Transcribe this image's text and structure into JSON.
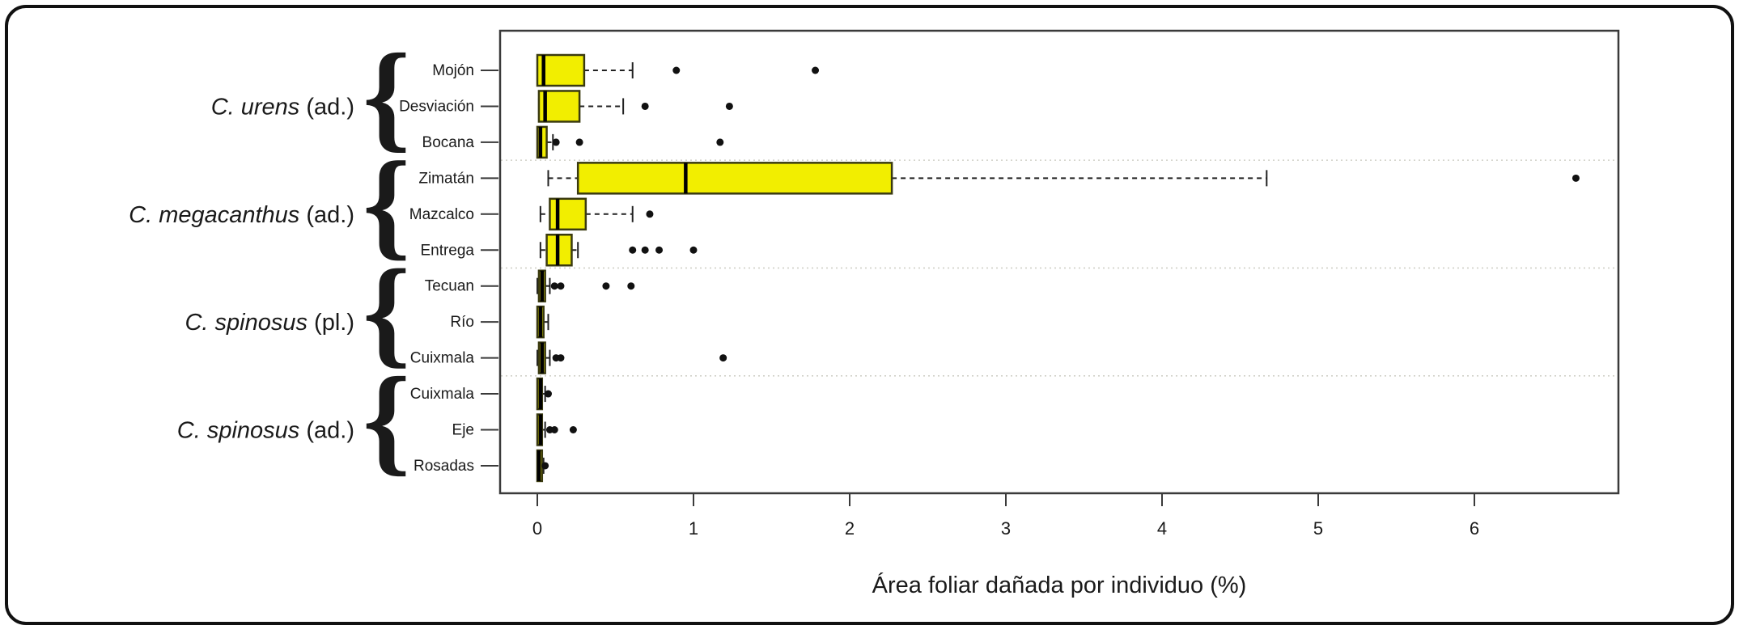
{
  "page": {
    "background": "#ffffff",
    "frame_border_color": "#111111"
  },
  "chart_data": {
    "type": "boxplot",
    "orientation": "horizontal",
    "title": "",
    "xlabel": "Área foliar dañada por individuo (%)",
    "x_ticks": [
      0,
      1,
      2,
      3,
      4,
      5,
      6
    ],
    "xlim": [
      -0.25,
      6.95
    ],
    "grid": false,
    "group_separators": "dotted",
    "colors": {
      "box_fill": "#f2ee00",
      "box_border": "#3a3a10",
      "median": "#000000",
      "whisker": "#222222",
      "outlier": "#111111",
      "separator": "#d0d0c8",
      "axis": "#3a3a3a",
      "text": "#1a1a1a"
    },
    "groups": [
      {
        "species": "C. urens",
        "stage": "(ad.)",
        "rows": [
          {
            "label": "Mojón",
            "whisker_lo": 0.0,
            "q1": 0.0,
            "median": 0.04,
            "q3": 0.3,
            "whisker_hi": 0.61,
            "outliers": [
              0.89,
              1.78
            ]
          },
          {
            "label": "Desviación",
            "whisker_lo": 0.01,
            "q1": 0.01,
            "median": 0.05,
            "q3": 0.27,
            "whisker_hi": 0.55,
            "outliers": [
              0.69,
              1.23
            ]
          },
          {
            "label": "Bocana",
            "whisker_lo": 0.0,
            "q1": 0.0,
            "median": 0.02,
            "q3": 0.06,
            "whisker_hi": 0.1,
            "outliers": [
              0.12,
              0.27,
              1.17
            ]
          }
        ]
      },
      {
        "species": "C. megacanthus",
        "stage": "(ad.)",
        "rows": [
          {
            "label": "Zimatán",
            "whisker_lo": 0.07,
            "q1": 0.26,
            "median": 0.95,
            "q3": 2.27,
            "whisker_hi": 4.67,
            "outliers": [
              6.65
            ]
          },
          {
            "label": "Mazcalco",
            "whisker_lo": 0.02,
            "q1": 0.08,
            "median": 0.13,
            "q3": 0.31,
            "whisker_hi": 0.61,
            "outliers": [
              0.72
            ]
          },
          {
            "label": "Entrega",
            "whisker_lo": 0.02,
            "q1": 0.06,
            "median": 0.13,
            "q3": 0.22,
            "whisker_hi": 0.26,
            "outliers": [
              0.61,
              0.69,
              0.78,
              1.0
            ]
          }
        ]
      },
      {
        "species": "C. spinosus",
        "stage": "(pl.)",
        "rows": [
          {
            "label": "Tecuan",
            "whisker_lo": 0.0,
            "q1": 0.01,
            "median": 0.03,
            "q3": 0.05,
            "whisker_hi": 0.08,
            "outliers": [
              0.11,
              0.15,
              0.44,
              0.6
            ]
          },
          {
            "label": "Río",
            "whisker_lo": 0.0,
            "q1": 0.0,
            "median": 0.02,
            "q3": 0.04,
            "whisker_hi": 0.07,
            "outliers": []
          },
          {
            "label": "Cuixmala",
            "whisker_lo": 0.0,
            "q1": 0.01,
            "median": 0.03,
            "q3": 0.05,
            "whisker_hi": 0.08,
            "outliers": [
              0.12,
              0.15,
              1.19
            ]
          }
        ]
      },
      {
        "species": "C. spinosus",
        "stage": "(ad.)",
        "rows": [
          {
            "label": "Cuixmala",
            "whisker_lo": 0.0,
            "q1": 0.0,
            "median": 0.02,
            "q3": 0.03,
            "whisker_hi": 0.05,
            "outliers": [
              0.07
            ]
          },
          {
            "label": "Eje",
            "whisker_lo": 0.0,
            "q1": 0.0,
            "median": 0.02,
            "q3": 0.03,
            "whisker_hi": 0.05,
            "outliers": [
              0.08,
              0.11,
              0.23
            ]
          },
          {
            "label": "Rosadas",
            "whisker_lo": 0.0,
            "q1": 0.0,
            "median": 0.01,
            "q3": 0.03,
            "whisker_hi": 0.04,
            "outliers": [
              0.05
            ]
          }
        ]
      }
    ]
  }
}
